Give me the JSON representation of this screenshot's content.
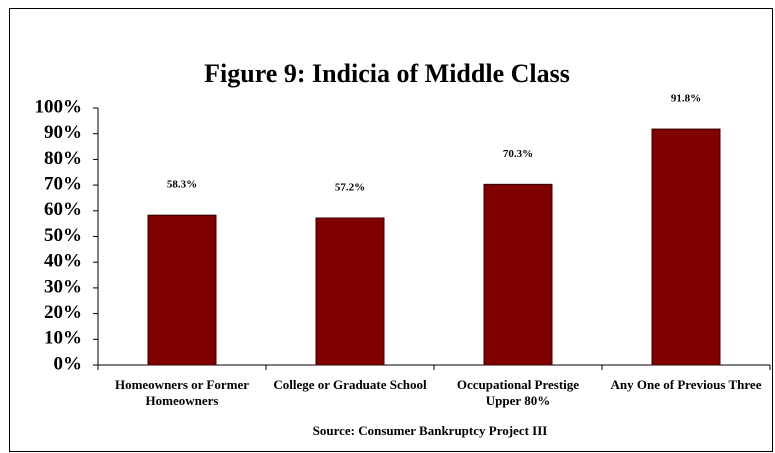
{
  "chart_data": {
    "type": "bar",
    "title": "Figure 9: Indicia of Middle Class",
    "categories": [
      "Homeowners or Former Homeowners",
      "College or Graduate School",
      "Occupational Prestige Upper 80%",
      "Any One of Previous Three"
    ],
    "values": [
      58.3,
      57.2,
      70.3,
      91.8
    ],
    "value_labels": [
      "58.3%",
      "57.2%",
      "70.3%",
      "91.8%"
    ],
    "color": "#800000",
    "x_label": "Source: Consumer Bankruptcy Project III",
    "ylim": [
      0,
      100
    ],
    "yticks": [
      {
        "value": 0,
        "label": "0%"
      },
      {
        "value": 10,
        "label": "10%"
      },
      {
        "value": 20,
        "label": "20%"
      },
      {
        "value": 30,
        "label": "30%"
      },
      {
        "value": 40,
        "label": "40%"
      },
      {
        "value": 50,
        "label": "50%"
      },
      {
        "value": 60,
        "label": "60%"
      },
      {
        "value": 70,
        "label": "70%"
      },
      {
        "value": 80,
        "label": "80%"
      },
      {
        "value": 90,
        "label": "90%"
      },
      {
        "value": 100,
        "label": "100%"
      }
    ],
    "grid": false
  }
}
